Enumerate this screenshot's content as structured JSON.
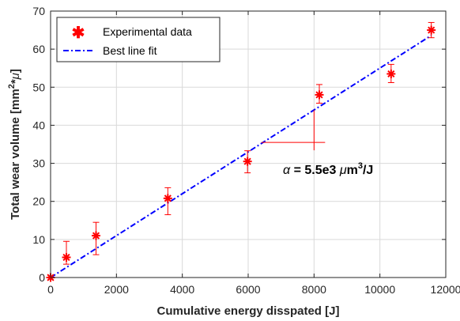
{
  "chart_data": {
    "type": "scatter",
    "xlabel": "Cumulative energy disspated [J]",
    "ylabel_main": "Total wear volume [mm",
    "ylabel_sup": "2",
    "ylabel_tail": "*",
    "ylabel_mu": "μ",
    "ylabel_close": "]",
    "xlim": [
      0,
      12000
    ],
    "ylim": [
      0,
      70
    ],
    "xticks": [
      0,
      2000,
      4000,
      6000,
      8000,
      10000,
      12000
    ],
    "yticks": [
      0,
      10,
      20,
      30,
      40,
      50,
      60,
      70
    ],
    "grid": true,
    "legend_position": "top-left",
    "legend": {
      "experimental": "Experimental data",
      "fit": "Best line fit"
    },
    "experimental": {
      "x": [
        0,
        480,
        1380,
        3560,
        5980,
        8160,
        10340,
        11560
      ],
      "y": [
        0,
        5.3,
        11,
        20.8,
        30.5,
        48,
        53.5,
        65
      ],
      "err_low": [
        0,
        1.8,
        5,
        4.3,
        3,
        2.2,
        2.3,
        2
      ],
      "err_high": [
        0,
        4.2,
        3.5,
        2.8,
        2.8,
        2.7,
        2.5,
        2
      ]
    },
    "fit": {
      "x": [
        0,
        11560
      ],
      "y": [
        0,
        63.6
      ]
    },
    "annotation": {
      "alpha": "α",
      "text1": " = 5.5e3 ",
      "mu": "μ",
      "text2": "m",
      "sup": "3",
      "text3": "/J",
      "triangle_x": [
        6400,
        8000
      ],
      "triangle_y": [
        35.5,
        44
      ]
    },
    "colors": {
      "experimental": "#ff0000",
      "fit": "#0000ff",
      "triangle": "#ff0000",
      "grid": "#d9d9d9",
      "axes": "#262626"
    }
  }
}
